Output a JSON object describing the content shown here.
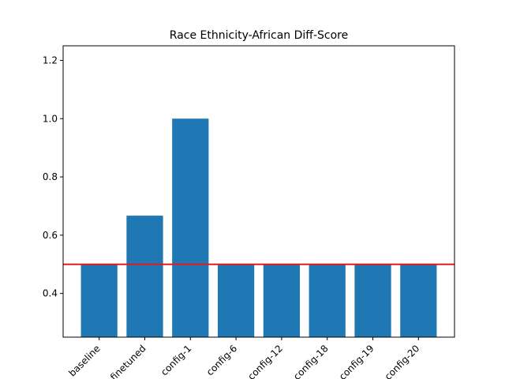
{
  "chart_data": {
    "type": "bar",
    "title": "Race Ethnicity-African Diff-Score",
    "xlabel": "",
    "ylabel": "",
    "categories": [
      "baseline",
      "finetuned",
      "config-1",
      "config-6",
      "config-12",
      "config-18",
      "config-19",
      "config-20"
    ],
    "values": [
      0.5,
      0.667,
      1.0,
      0.5,
      0.5,
      0.5,
      0.5,
      0.5
    ],
    "ylim": [
      0.25,
      1.25
    ],
    "yticks": [
      0.4,
      0.6,
      0.8,
      1.0,
      1.2
    ],
    "ytick_labels": [
      "0.4",
      "0.6",
      "0.8",
      "1.0",
      "1.2"
    ],
    "reference_line": {
      "y": 0.5,
      "color": "#e41a1c"
    },
    "bar_color": "#1f77b4",
    "grid": false,
    "legend": "none"
  }
}
